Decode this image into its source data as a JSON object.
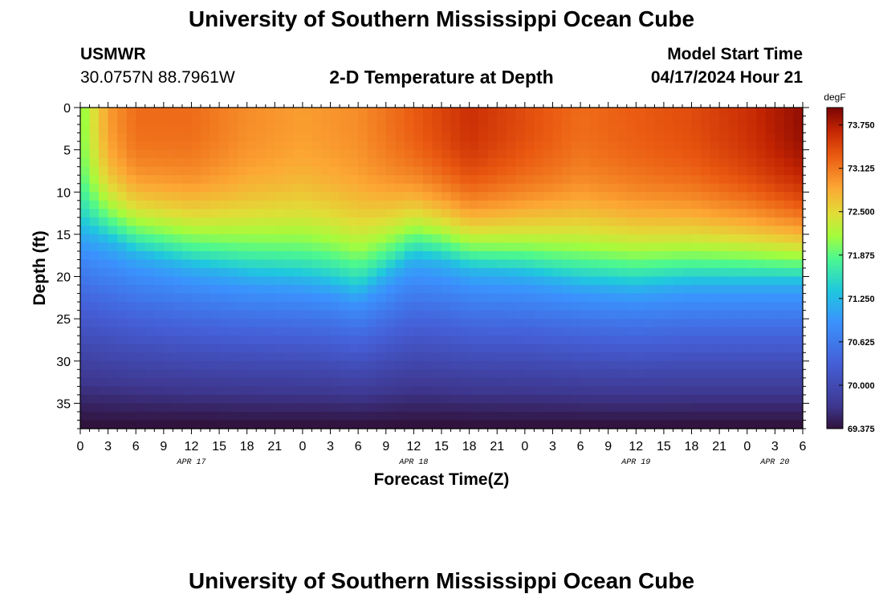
{
  "header": {
    "title": "University of Southern Mississippi Ocean Cube",
    "station_id": "USMWR",
    "coordinates": "30.0757N  88.7961W",
    "plot_title": "2-D Temperature at Depth",
    "model_start_label": "Model Start Time",
    "model_start_value": "04/17/2024 Hour 21"
  },
  "footer": {
    "title": "University of Southern Mississippi Ocean Cube"
  },
  "chart_data": {
    "type": "heatmap",
    "title": "2-D Temperature at Depth",
    "xlabel": "Forecast Time(Z)",
    "ylabel": "Depth (ft)",
    "x_range_hours": [
      0,
      78
    ],
    "y_range_ft": [
      0,
      38
    ],
    "x_tick_labels": [
      "0",
      "3",
      "6",
      "9",
      "12",
      "15",
      "18",
      "21",
      "0",
      "3",
      "6",
      "9",
      "12",
      "15",
      "18",
      "21",
      "0",
      "3",
      "6",
      "9",
      "12",
      "15",
      "18",
      "21",
      "0",
      "3",
      "6"
    ],
    "day_labels": [
      {
        "text": "APR 17",
        "hour": 12
      },
      {
        "text": "APR 18",
        "hour": 36
      },
      {
        "text": "APR 19",
        "hour": 60
      },
      {
        "text": "APR 20",
        "hour": 75
      }
    ],
    "y_ticks": [
      0,
      5,
      10,
      15,
      20,
      25,
      30,
      35
    ],
    "y_tick_labels": [
      "0",
      "5",
      "10",
      "15",
      "20",
      "25",
      "30",
      "35"
    ],
    "colorbar": {
      "unit": "degF",
      "min": 69.375,
      "max": 74.0,
      "ticks": [
        69.375,
        70.0,
        70.625,
        71.25,
        71.875,
        72.5,
        73.125,
        73.75
      ],
      "tick_labels": [
        "69.375",
        "70.000",
        "70.625",
        "71.250",
        "71.875",
        "72.500",
        "73.125",
        "73.750"
      ]
    },
    "surface_temp_hours": [
      0,
      3,
      6,
      12,
      18,
      24,
      30,
      36,
      42,
      48,
      54,
      60,
      66,
      72,
      78
    ],
    "surface_temp_values": [
      72.0,
      72.9,
      73.2,
      73.2,
      73.0,
      72.9,
      73.0,
      73.3,
      73.6,
      73.4,
      73.2,
      73.3,
      73.4,
      73.6,
      73.9
    ],
    "thermocline_hours": [
      0,
      6,
      12,
      18,
      24,
      27,
      30,
      33,
      36,
      39,
      42,
      48,
      54,
      60,
      66,
      72,
      78
    ],
    "thermocline_depth_ft": [
      14,
      17,
      18.5,
      19.5,
      20,
      20.5,
      21.5,
      19.5,
      17.5,
      18,
      19,
      19.5,
      20.5,
      21,
      20.5,
      20.5,
      20.5
    ]
  }
}
